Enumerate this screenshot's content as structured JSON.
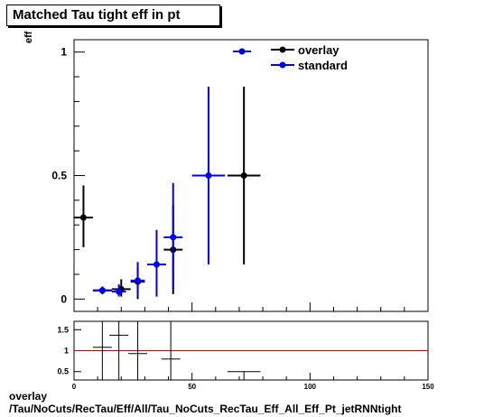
{
  "title": "Matched Tau tight eff in pt",
  "ylabel": "eff",
  "footer": {
    "line1": "overlay",
    "line2": "/Tau/NoCuts/RecTau/Eff/All/Tau_NoCuts_RecTau_Eff_All_Eff_Pt_jetRNNtight"
  },
  "colors": {
    "overlay": "#000000",
    "standard": "#0000ee",
    "ratio_line": "#cc0000"
  },
  "chart_data": [
    {
      "type": "scatter",
      "title": "Matched Tau tight eff in pt",
      "xlabel": "",
      "ylabel": "eff",
      "xlim": [
        0,
        150
      ],
      "ylim": [
        -0.05,
        1.05
      ],
      "y_ticks": [
        0,
        0.5,
        1
      ],
      "y_tick_labels": [
        "0",
        "0.5",
        "1"
      ],
      "legend_position": "top",
      "series": [
        {
          "name": "overlay",
          "points": [
            {
              "x": 4,
              "xerr": 4,
              "y": 0.33,
              "ylo": 0.21,
              "yhi": 0.46
            },
            {
              "x": 12,
              "xerr": 4,
              "y": 0.035,
              "ylo": 0.02,
              "yhi": 0.05
            },
            {
              "x": 20,
              "xerr": 4,
              "y": 0.04,
              "ylo": 0.01,
              "yhi": 0.08
            },
            {
              "x": 27,
              "xerr": 3,
              "y": 0.07,
              "ylo": 0.0,
              "yhi": 0.13
            },
            {
              "x": 42,
              "xerr": 4,
              "y": 0.2,
              "ylo": 0.02,
              "yhi": 0.38
            },
            {
              "x": 72,
              "xerr": 7,
              "y": 0.5,
              "ylo": 0.14,
              "yhi": 0.86
            }
          ]
        },
        {
          "name": "standard",
          "points": [
            {
              "x": 12,
              "xerr": 4,
              "y": 0.035,
              "ylo": 0.02,
              "yhi": 0.05
            },
            {
              "x": 19,
              "xerr": 3,
              "y": 0.03,
              "ylo": 0.01,
              "yhi": 0.06
            },
            {
              "x": 27,
              "xerr": 3,
              "y": 0.075,
              "ylo": 0.01,
              "yhi": 0.15
            },
            {
              "x": 35,
              "xerr": 4,
              "y": 0.14,
              "ylo": 0.01,
              "yhi": 0.28
            },
            {
              "x": 42,
              "xerr": 4,
              "y": 0.25,
              "ylo": 0.04,
              "yhi": 0.47
            },
            {
              "x": 57,
              "xerr": 7,
              "y": 0.5,
              "ylo": 0.14,
              "yhi": 0.86
            }
          ]
        }
      ]
    },
    {
      "type": "scatter",
      "xlim": [
        0,
        150
      ],
      "ylim": [
        0.3,
        1.7
      ],
      "x_ticks": [
        0,
        50,
        100,
        150
      ],
      "x_tick_labels": [
        "0",
        "50",
        "100",
        "150"
      ],
      "y_ticks": [
        0.5,
        1,
        1.5
      ],
      "y_tick_labels": [
        "0.5",
        "1",
        "1.5"
      ],
      "reference_line": 1,
      "series": [
        {
          "name": "ratio",
          "points": [
            {
              "x": 4,
              "xerr": 4,
              "y": null
            },
            {
              "x": 12,
              "xerr": 4,
              "y": 1.08,
              "ylo": 0.3,
              "yhi": 1.7
            },
            {
              "x": 19,
              "xerr": 4,
              "y": 1.37,
              "ylo": 0.3,
              "yhi": 1.7
            },
            {
              "x": 27,
              "xerr": 4,
              "y": 0.93,
              "ylo": 0.3,
              "yhi": 1.7
            },
            {
              "x": 41,
              "xerr": 4,
              "y": 0.8,
              "ylo": 0.3,
              "yhi": 1.7
            },
            {
              "x": 72,
              "xerr": 7,
              "y": 0.5,
              "ylo": 0.3,
              "yhi": 0.5
            }
          ]
        }
      ]
    }
  ]
}
